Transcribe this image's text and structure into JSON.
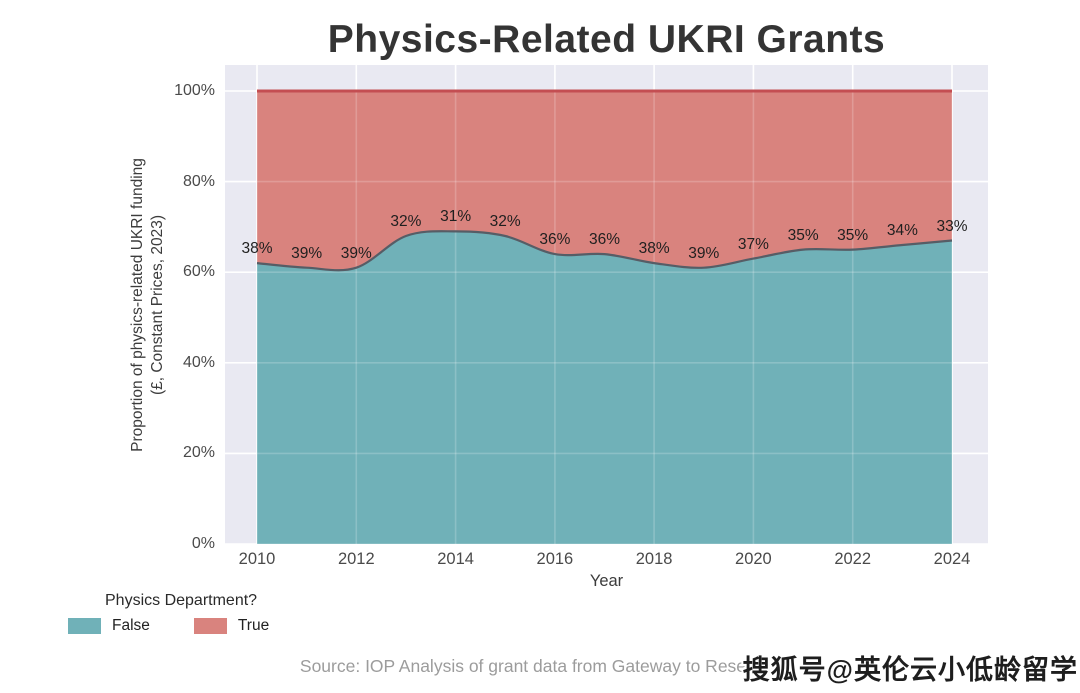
{
  "title": "Physics-Related UKRI Grants",
  "source": "Source: IOP Analysis of grant data from Gateway to Research",
  "watermark": "搜狐号@英伦云小低龄留学",
  "chart_data": {
    "type": "area",
    "stacked": true,
    "normalized_percent": true,
    "title": "Physics-Related UKRI Grants",
    "xlabel": "Year",
    "ylabel_line1": "Proportion of physics-related UKRI funding",
    "ylabel_line2": "(£, Constant Prices, 2023)",
    "x": [
      2010,
      2011,
      2012,
      2013,
      2014,
      2015,
      2016,
      2017,
      2018,
      2019,
      2020,
      2021,
      2022,
      2023,
      2024
    ],
    "series": [
      {
        "name": "False",
        "color": "#70b1b8",
        "values": [
          62,
          61,
          61,
          68,
          69,
          68,
          64,
          64,
          62,
          61,
          63,
          65,
          65,
          66,
          67
        ]
      },
      {
        "name": "True",
        "color": "#d9837e",
        "values": [
          38,
          39,
          39,
          32,
          31,
          32,
          36,
          36,
          38,
          39,
          37,
          35,
          35,
          34,
          33
        ]
      }
    ],
    "point_labels": [
      "38%",
      "39%",
      "39%",
      "32%",
      "31%",
      "32%",
      "36%",
      "36%",
      "38%",
      "39%",
      "37%",
      "35%",
      "35%",
      "34%",
      "33%"
    ],
    "x_ticks": [
      "2010",
      "2012",
      "2014",
      "2016",
      "2018",
      "2020",
      "2022",
      "2024"
    ],
    "y_ticks": [
      "0%",
      "20%",
      "40%",
      "60%",
      "80%",
      "100%"
    ],
    "ylim": [
      0,
      100
    ],
    "grid": true,
    "colors": {
      "plot_background": "#e9e9f2",
      "gridline": "#ffffff",
      "top_line": "#c44e52",
      "boundary_line": "#565d66"
    },
    "legend": {
      "title": "Physics Department?",
      "position": "bottom-left",
      "entries": [
        {
          "label": "False",
          "color": "#70b1b8"
        },
        {
          "label": "True",
          "color": "#d9837e"
        }
      ]
    }
  }
}
